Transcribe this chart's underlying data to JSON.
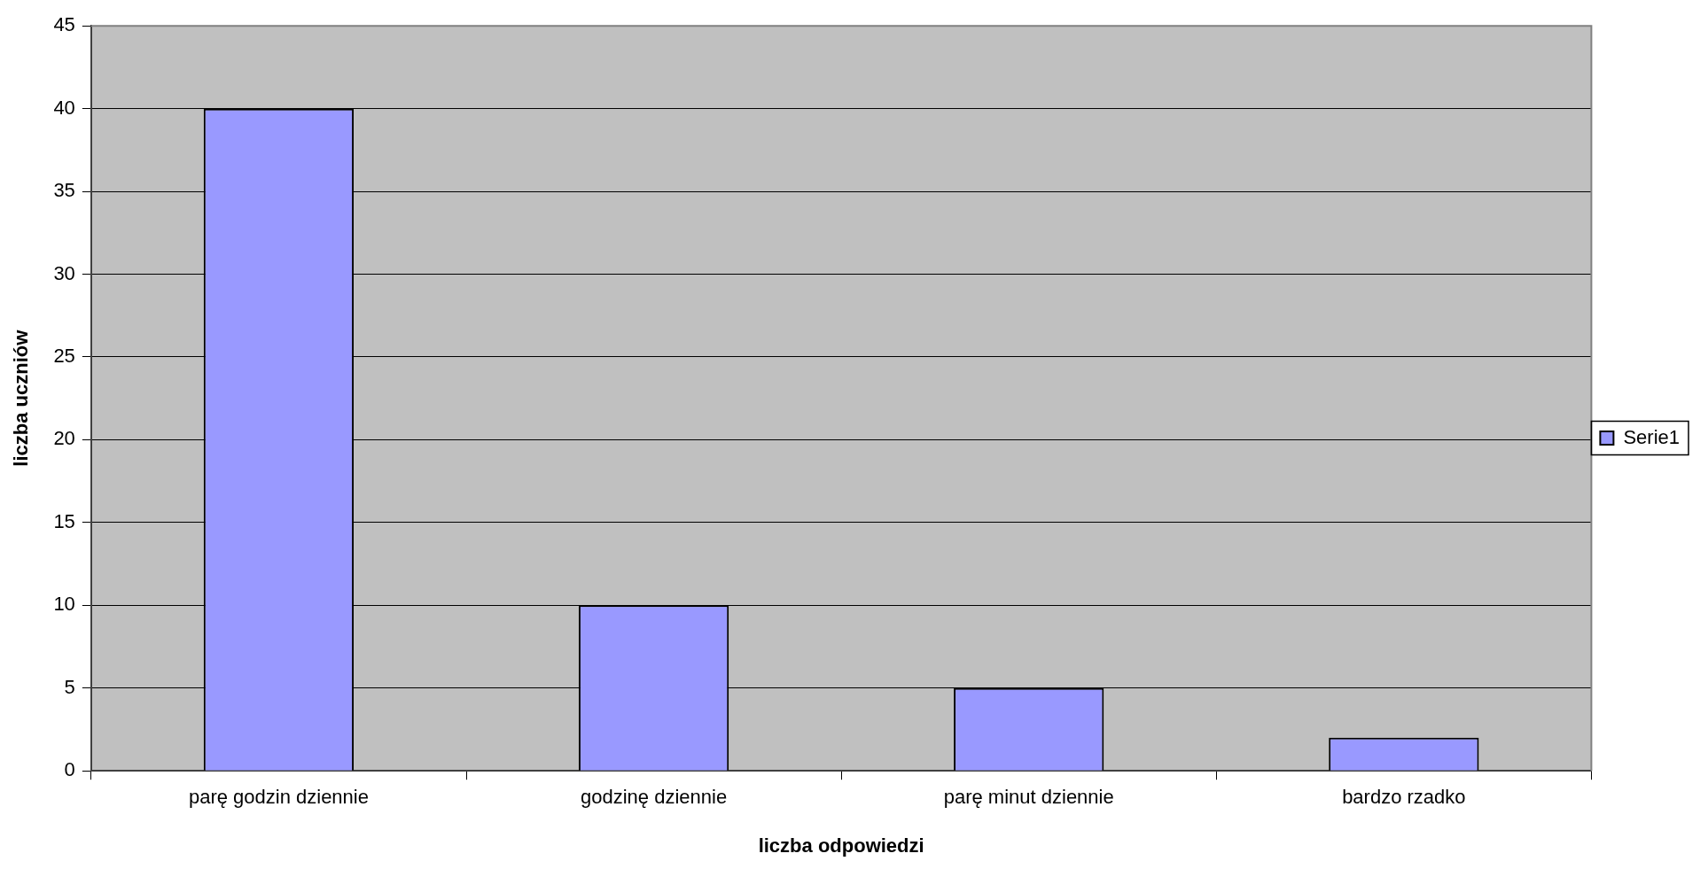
{
  "chart_data": {
    "type": "bar",
    "xlabel": "liczba odpowiedzi",
    "ylabel": "liczba uczniów",
    "categories": [
      "parę godzin dziennie",
      "godzinę dziennie",
      "parę minut dziennie",
      "bardzo rzadko"
    ],
    "series": [
      {
        "name": "Serie1",
        "color": "#9999ff",
        "values": [
          40,
          10,
          5,
          2
        ]
      }
    ],
    "ylim": [
      0,
      45
    ],
    "yticks": [
      0,
      5,
      10,
      15,
      20,
      25,
      30,
      35,
      40,
      45
    ],
    "grid": "y",
    "legend": "right"
  }
}
